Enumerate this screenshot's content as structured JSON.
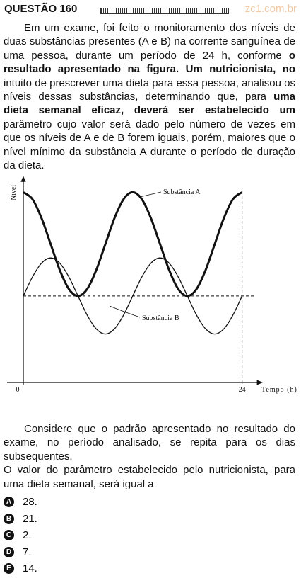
{
  "header": {
    "title": "QUESTÃO 160",
    "watermark": "zc1.com.br"
  },
  "statement": [
    "Em um exame, foi feito o monitoramento dos níveis de duas substâncias presentes (A e B) na corrente sanguínea de uma pessoa, durante um período de 24 h, conforme ",
    "o resultado apresentado na figura. Um nutricionista, no",
    " intuito de prescrever uma dieta para essa pessoa, analisou os níveis dessas substâncias, determinando que, para ",
    "uma dieta semanal eficaz, deverá ser estabelecido um",
    " parâmetro cujo valor será dado pelo número de vezes em que os níveis de A e de B forem iguais, porém, maiores que o nível mínimo da substância A durante o período de duração da dieta."
  ],
  "chart_data": {
    "type": "line",
    "xlabel": "Tempo (h)",
    "ylabel": "Nível",
    "x": [
      0,
      1,
      2,
      3,
      4,
      5,
      6,
      7,
      8,
      9,
      10,
      11,
      12,
      13,
      14,
      15,
      16,
      17,
      18,
      19,
      20,
      21,
      22,
      23,
      24
    ],
    "series": [
      {
        "name": "Substância A",
        "color": "#111111",
        "width": 3,
        "values": [
          11,
          10.6,
          9.5,
          8,
          6.5,
          5.4,
          5,
          5.4,
          6.5,
          8,
          9.5,
          10.6,
          11,
          10.6,
          9.5,
          8,
          6.5,
          5.4,
          5,
          5.4,
          6.5,
          8,
          9.5,
          10.6,
          11
        ]
      },
      {
        "name": "Substância B",
        "color": "#111111",
        "width": 1.3,
        "values": [
          5,
          6.1,
          6.9,
          7.2,
          6.9,
          6.1,
          5,
          3.9,
          3.1,
          2.8,
          3.1,
          3.9,
          5,
          6.1,
          6.9,
          7.2,
          6.9,
          6.1,
          5,
          3.9,
          3.1,
          2.8,
          3.1,
          3.9,
          5
        ]
      }
    ],
    "xlim": [
      0,
      26
    ],
    "ylim": [
      0,
      12
    ],
    "xticks": [
      0,
      24
    ],
    "dashed_hline": 5
  },
  "after": [
    "Considere que o padrão apresentado no resultado do exame, no período analisado, se repita para os dias subsequentes.",
    "O valor do parâmetro estabelecido pelo nutricionista, para uma dieta semanal, será igual a"
  ],
  "options": [
    {
      "letter": "A",
      "text": "28."
    },
    {
      "letter": "B",
      "text": "21."
    },
    {
      "letter": "C",
      "text": "2."
    },
    {
      "letter": "D",
      "text": "7."
    },
    {
      "letter": "E",
      "text": "14."
    }
  ]
}
